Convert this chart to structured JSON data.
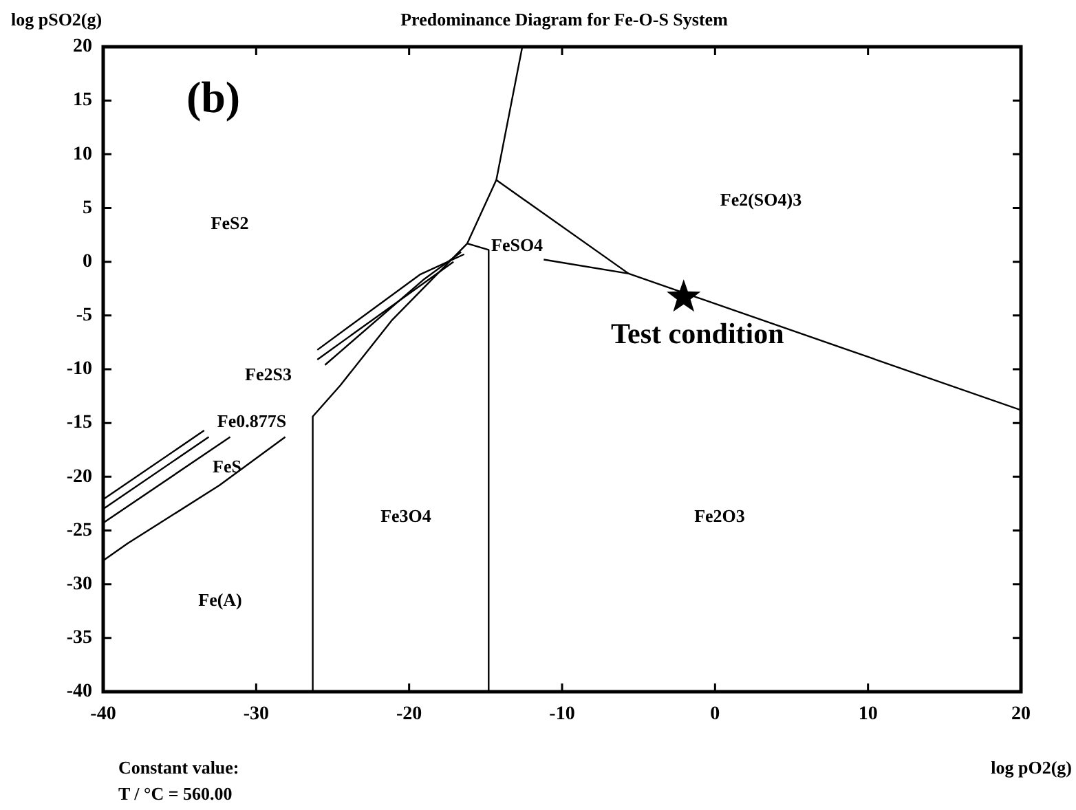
{
  "chart_data": {
    "type": "line",
    "title": "Predominance Diagram for Fe-O-S System",
    "xlabel": "log pO2(g)",
    "ylabel": "log pSO2(g)",
    "xlim": [
      -40,
      20
    ],
    "xticks": [
      -40,
      -30,
      -20,
      -10,
      0,
      10,
      20
    ],
    "ylim": [
      -40,
      20
    ],
    "yticks": [
      -40,
      -35,
      -30,
      -25,
      -20,
      -15,
      -10,
      -5,
      0,
      5,
      10,
      15,
      20
    ],
    "grid": false,
    "legend": false,
    "line_style": "solid",
    "series": [
      {
        "color": "#000000",
        "x": [
          -12.6,
          -14.3,
          -16.2,
          -21.1,
          -24.5,
          -26.3,
          -26.3
        ],
        "values": [
          20,
          7.6,
          1.7,
          -5.4,
          -11.5,
          -14.4,
          -40
        ]
      },
      {
        "color": "#000000",
        "x": [
          -14.3,
          -5.65
        ],
        "values": [
          7.6,
          -1.1
        ]
      },
      {
        "color": "#000000",
        "x": [
          -16.2,
          -14.8,
          -14.8
        ],
        "values": [
          1.7,
          1.1,
          -40
        ]
      },
      {
        "color": "#000000",
        "x": [
          -11.2,
          -5.65,
          20
        ],
        "values": [
          0.2,
          -1.1,
          -13.8
        ]
      },
      {
        "color": "#000000",
        "x": [
          -40,
          -38.4,
          -32.4,
          -28.1
        ],
        "values": [
          -27.8,
          -26.2,
          -20.8,
          -16.3
        ]
      },
      {
        "color": "#000000",
        "x": [
          -40,
          -33.4,
          -30,
          -26,
          -19.3,
          -16.4
        ],
        "values": [
          -22.1,
          -15.7,
          null,
          -8.2,
          -1.2,
          0.7
        ]
      },
      {
        "color": "#000000",
        "x": [
          -40,
          -33.1,
          -30,
          -26,
          -17.1
        ],
        "values": [
          -23.0,
          -16.3,
          null,
          -9.1,
          0
        ]
      },
      {
        "color": "#000000",
        "x": [
          -40,
          -31.7,
          -28,
          -25.5,
          -19.0,
          -16.6
        ],
        "values": [
          -24.3,
          -16.3,
          null,
          -9.6,
          -1.6,
          0.9
        ]
      },
      {
        "type": "scatter",
        "marker": "star",
        "color": "#000000",
        "x": [
          -2.05
        ],
        "values": [
          -3.3
        ]
      }
    ],
    "annotations": [
      "(b)",
      "FeS2",
      "Fe2(SO4)3",
      "FeSO4",
      "Fe2S3",
      "Fe0.877S",
      "FeS",
      "Fe3O4",
      "Fe2O3",
      "Fe(A)",
      {
        "text": "Test condition",
        "x": -2.05,
        "y": -3.3
      },
      "Constant value:",
      "T / °C = 560.00"
    ]
  }
}
